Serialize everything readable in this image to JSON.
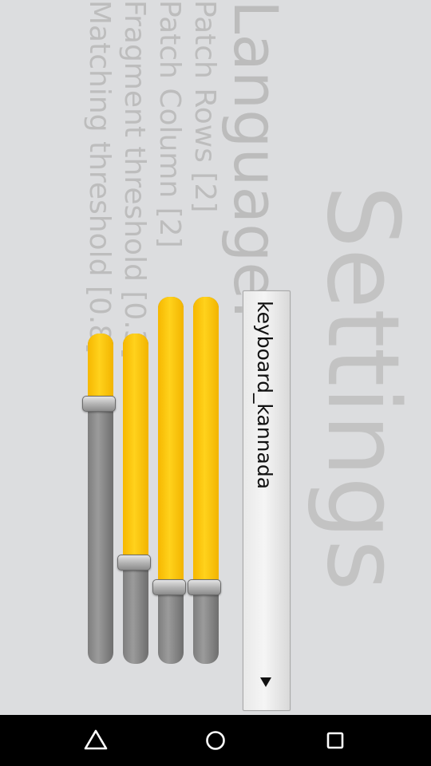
{
  "title": "Settings",
  "language": {
    "label": "Language:",
    "selected": "keyboard_kannada"
  },
  "settings": [
    {
      "label": "Patch Rows [2]",
      "value_fraction": 0.21
    },
    {
      "label": "Patch Column [2]",
      "value_fraction": 0.21
    },
    {
      "label": "Fragment threshold [0.3]",
      "value_fraction": 0.31
    },
    {
      "label": "Matching threshold [0.8]",
      "value_fraction": 0.79
    }
  ],
  "colors": {
    "accent": "#ffc400",
    "background": "#dcdddf",
    "track": "#8a8a8a"
  },
  "navbar": {
    "back_icon": "back-triangle-icon",
    "home_icon": "home-circle-icon",
    "recents_icon": "recents-square-icon"
  }
}
